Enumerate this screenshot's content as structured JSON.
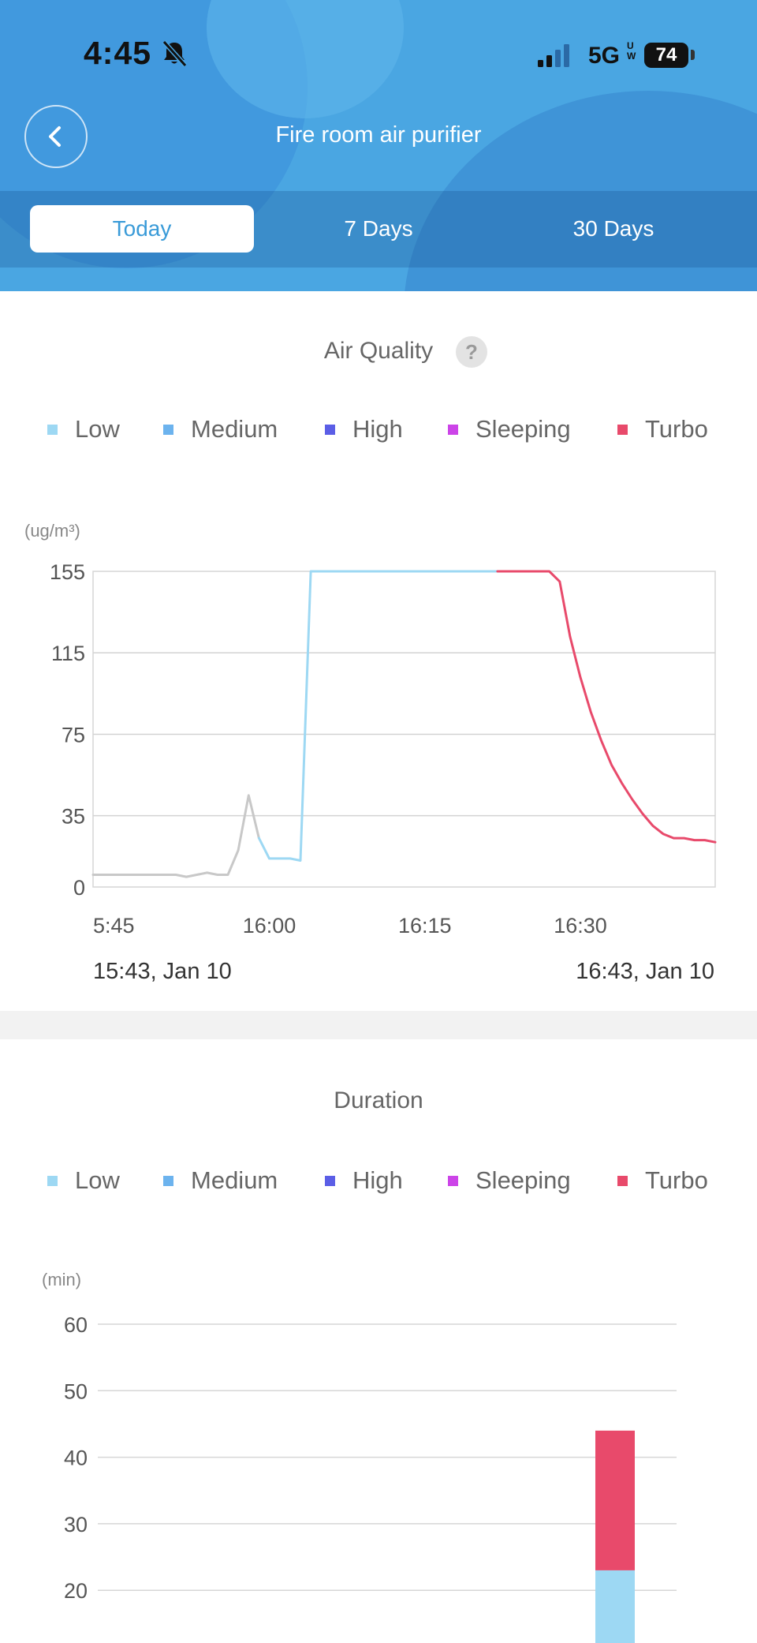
{
  "status_bar": {
    "time": "4:45",
    "network": "5G",
    "network_sup": "UW",
    "battery": "74"
  },
  "header": {
    "title": "Fire room air purifier",
    "tabs": [
      {
        "label": "Today",
        "active": true
      },
      {
        "label": "7 Days",
        "active": false
      },
      {
        "label": "30 Days",
        "active": false
      }
    ]
  },
  "legend": [
    {
      "label": "Low",
      "color": "#9dd8f3"
    },
    {
      "label": "Medium",
      "color": "#6cb3ee"
    },
    {
      "label": "High",
      "color": "#5b5ee6"
    },
    {
      "label": "Sleeping",
      "color": "#cc44e8"
    },
    {
      "label": "Turbo",
      "color": "#e84a6b"
    }
  ],
  "air_quality": {
    "title": "Air Quality",
    "help_icon": "?",
    "unit": "(ug/m³)",
    "start_label": "15:43,  Jan 10",
    "end_label": "16:43,  Jan 10"
  },
  "duration": {
    "title": "Duration",
    "unit": "(min)"
  },
  "chart_data": [
    {
      "type": "line",
      "title": "Air Quality",
      "ylabel": "(ug/m³)",
      "ylim": [
        0,
        155
      ],
      "yticks": [
        0,
        35,
        75,
        115,
        155
      ],
      "xticks": [
        "5:45",
        "16:00",
        "16:15",
        "16:30"
      ],
      "xlim_minutes": [
        "15:43",
        "16:43"
      ],
      "grid": true,
      "series": [
        {
          "mode": "Off",
          "color": "#c8c8c8",
          "points": [
            [
              "15:43",
              6
            ],
            [
              "15:51",
              6
            ],
            [
              "15:52",
              5
            ],
            [
              "15:53",
              6
            ],
            [
              "15:54",
              7
            ],
            [
              "15:55",
              6
            ],
            [
              "15:56",
              6
            ],
            [
              "15:57",
              18
            ],
            [
              "15:58",
              45
            ],
            [
              "15:59",
              24
            ]
          ]
        },
        {
          "mode": "Low",
          "color": "#9dd8f3",
          "points": [
            [
              "15:59",
              24
            ],
            [
              "16:00",
              14
            ],
            [
              "16:01",
              14
            ],
            [
              "16:02",
              14
            ],
            [
              "16:03",
              13
            ],
            [
              "16:04",
              155
            ],
            [
              "16:22",
              155
            ]
          ]
        },
        {
          "mode": "Turbo",
          "color": "#e84a6b",
          "points": [
            [
              "16:22",
              155
            ],
            [
              "16:27",
              155
            ],
            [
              "16:28",
              150
            ],
            [
              "16:29",
              123
            ],
            [
              "16:30",
              103
            ],
            [
              "16:31",
              86
            ],
            [
              "16:32",
              72
            ],
            [
              "16:33",
              60
            ],
            [
              "16:34",
              51
            ],
            [
              "16:35",
              43
            ],
            [
              "16:36",
              36
            ],
            [
              "16:37",
              30
            ],
            [
              "16:38",
              26
            ],
            [
              "16:39",
              24
            ],
            [
              "16:40",
              24
            ],
            [
              "16:41",
              23
            ],
            [
              "16:42",
              23
            ],
            [
              "16:43",
              22
            ]
          ]
        }
      ]
    },
    {
      "type": "bar",
      "title": "Duration",
      "ylabel": "(min)",
      "yticks": [
        20,
        30,
        40,
        50,
        60
      ],
      "ylim": [
        10,
        60
      ],
      "grid": true,
      "stacked": true,
      "bars": [
        {
          "segments": [
            {
              "mode": "Low",
              "value": 23,
              "color": "#9dd8f3"
            },
            {
              "mode": "Turbo",
              "value": 21,
              "color": "#e84a6b"
            }
          ]
        }
      ]
    }
  ]
}
